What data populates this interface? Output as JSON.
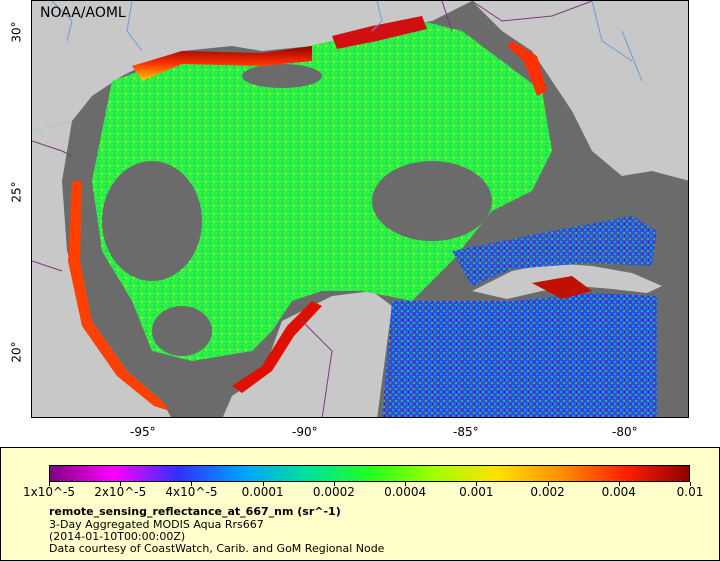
{
  "map": {
    "credit": "NOAA/AOML",
    "lat_ticks": [
      "30°",
      "25°",
      "20°"
    ],
    "lon_ticks": [
      "-95°",
      "-90°",
      "-85°",
      "-80°"
    ],
    "colors": {
      "land": "#c8c8c8",
      "no_data": "#6b6b6b",
      "border": "#7a3a7a",
      "river": "#6a9bd6"
    }
  },
  "legend": {
    "tick_labels": [
      "1x10^-5",
      "2x10^-5",
      "4x10^-5",
      "0.0001",
      "0.0002",
      "0.0004",
      "0.001",
      "0.002",
      "0.004",
      "0.01"
    ],
    "variable": "remote_sensing_reflectance_at_667_nm (sr^-1)",
    "description": "3-Day Aggregated MODIS Aqua Rrs667",
    "time": "(2014-01-10T00:00:00Z)",
    "source": "Data courtesy of CoastWatch, Carib. and GoM Regional Node",
    "colormap": [
      "#800080",
      "#ff00ff",
      "#3030ff",
      "#00a0ff",
      "#00e0a0",
      "#20ff20",
      "#a0ff00",
      "#ffe000",
      "#ff9000",
      "#ff2000",
      "#900000"
    ]
  }
}
